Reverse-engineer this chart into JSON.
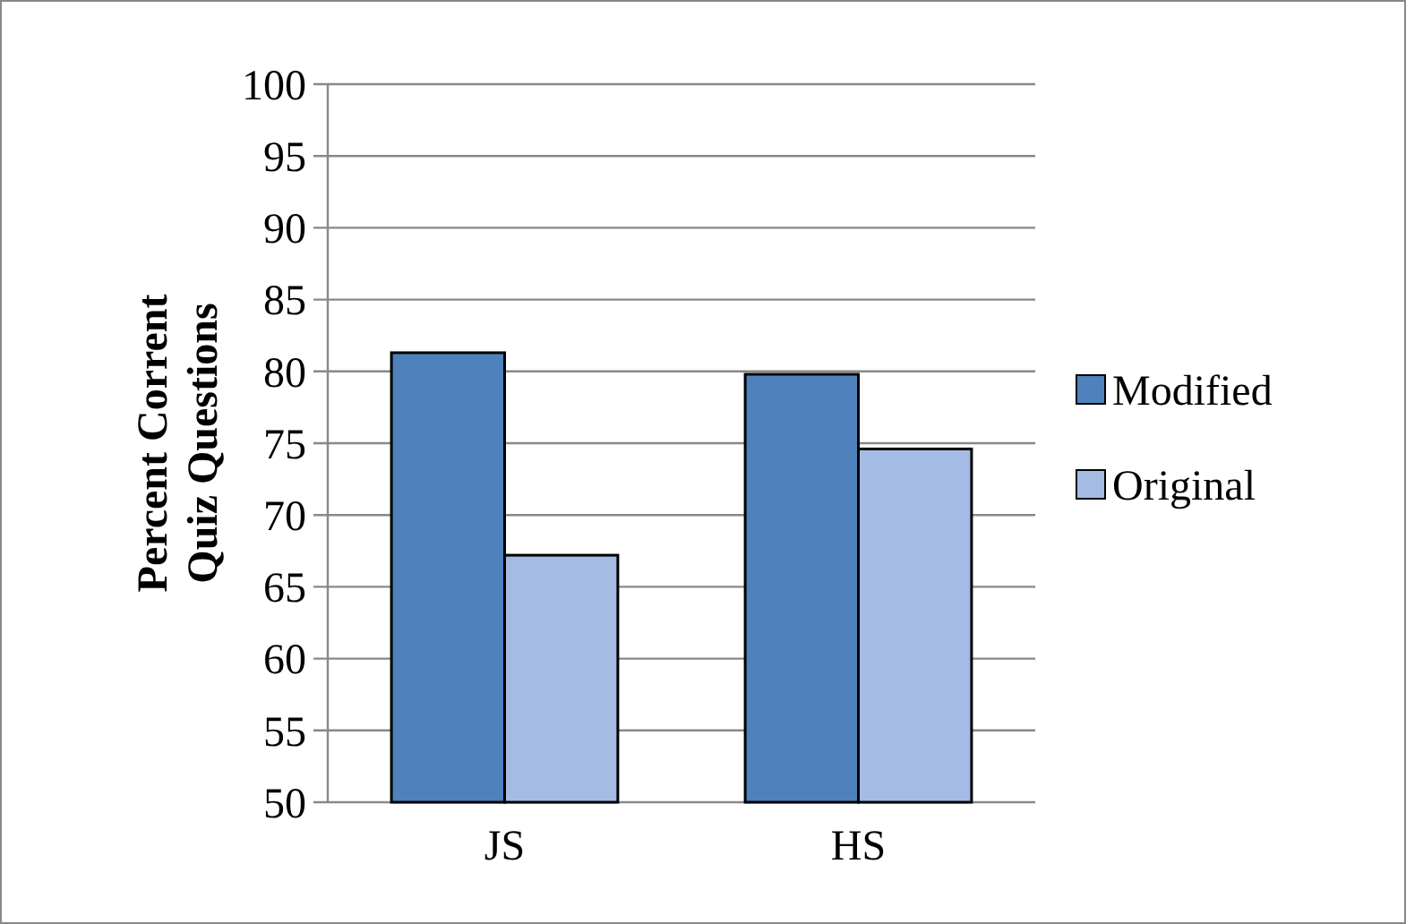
{
  "chart_data": {
    "type": "bar",
    "ylabel": "Percent Corrent Quiz Questions",
    "categories": [
      "JS",
      "HS"
    ],
    "series": [
      {
        "name": "Modified",
        "color": "#4f81bd",
        "values": [
          81.3,
          79.8
        ]
      },
      {
        "name": "Original",
        "color": "#a4bce4",
        "values": [
          67.2,
          74.6
        ]
      }
    ],
    "ylim": [
      50,
      100
    ],
    "yticks": [
      50,
      55,
      60,
      65,
      70,
      75,
      80,
      85,
      90,
      95,
      100
    ],
    "grid": "y",
    "legend": "right"
  }
}
